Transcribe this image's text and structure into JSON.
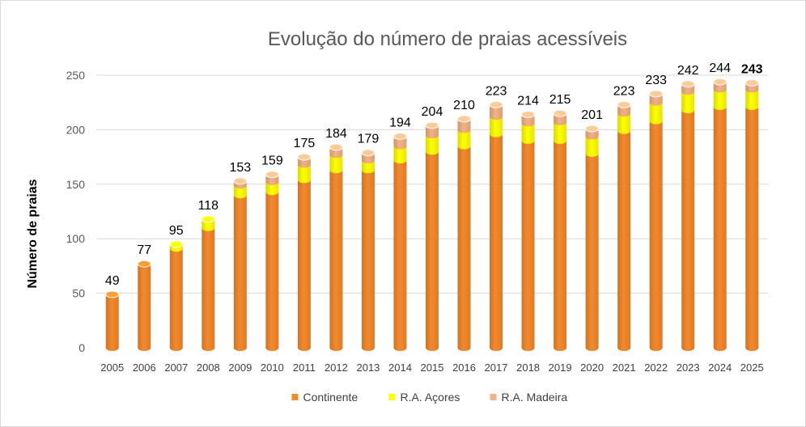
{
  "chart_data": {
    "type": "bar",
    "stacked": true,
    "title": "Evolução do número de praias acessíveis",
    "xlabel": "",
    "ylabel": "Número de praias",
    "ylim": [
      0,
      250
    ],
    "yticks": [
      0,
      50,
      100,
      150,
      200,
      250
    ],
    "grid": true,
    "legend_position": "bottom",
    "categories": [
      "2005",
      "2006",
      "2007",
      "2008",
      "2009",
      "2010",
      "2011",
      "2012",
      "2013",
      "2014",
      "2015",
      "2016",
      "2017",
      "2018",
      "2019",
      "2020",
      "2021",
      "2022",
      "2023",
      "2024",
      "2025"
    ],
    "series": [
      {
        "name": "Continente",
        "color": "#f4892b",
        "values": [
          49,
          77,
          91,
          110,
          140,
          143,
          154,
          163,
          163,
          172,
          180,
          185,
          196,
          190,
          190,
          178,
          199,
          208,
          218,
          221,
          221
        ]
      },
      {
        "name": "R.A. Açores",
        "color": "#ffff00",
        "values": [
          0,
          0,
          4,
          8,
          9,
          9,
          14,
          14,
          9,
          13,
          15,
          15,
          16,
          16,
          17,
          16,
          16,
          17,
          17,
          16,
          16
        ]
      },
      {
        "name": "R.A. Madeira",
        "color": "#f4b183",
        "values": [
          0,
          0,
          0,
          0,
          4,
          7,
          7,
          7,
          7,
          9,
          9,
          10,
          11,
          8,
          8,
          7,
          8,
          8,
          7,
          7,
          6
        ]
      }
    ],
    "totals": [
      49,
      77,
      95,
      118,
      153,
      159,
      175,
      184,
      179,
      194,
      204,
      210,
      223,
      214,
      215,
      201,
      223,
      233,
      242,
      244,
      243
    ],
    "highlight_total_index": 20
  }
}
